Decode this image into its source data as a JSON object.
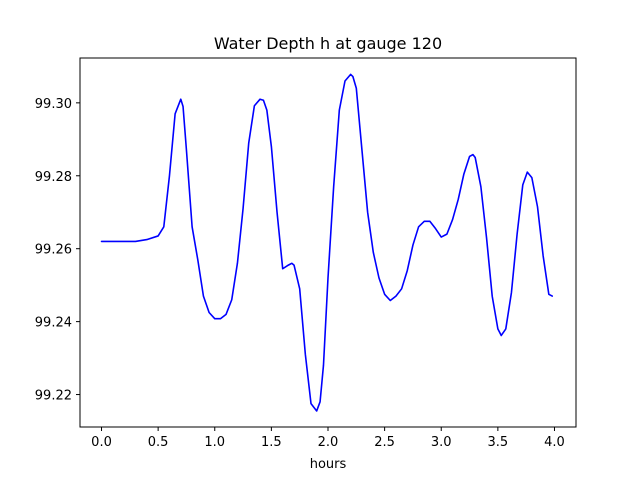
{
  "chart_data": {
    "type": "line",
    "title": "Water Depth h at gauge 120",
    "xlabel": "hours",
    "ylabel": "",
    "xlim": [
      -0.19,
      4.19
    ],
    "ylim": [
      99.2111,
      99.3123
    ],
    "xticks": [
      0.0,
      0.5,
      1.0,
      1.5,
      2.0,
      2.5,
      3.0,
      3.5,
      4.0
    ],
    "xtick_labels": [
      "0.0",
      "0.5",
      "1.0",
      "1.5",
      "2.0",
      "2.5",
      "3.0",
      "3.5",
      "4.0"
    ],
    "yticks": [
      99.22,
      99.24,
      99.26,
      99.28,
      99.3
    ],
    "ytick_labels": [
      "99.22",
      "99.24",
      "99.26",
      "99.28",
      "99.30"
    ],
    "grid": false,
    "color": "#0000ff",
    "series": [
      {
        "x": [
          0.0,
          0.1,
          0.2,
          0.3,
          0.4,
          0.5,
          0.55,
          0.6,
          0.65,
          0.7,
          0.72,
          0.75,
          0.8,
          0.85,
          0.9,
          0.95,
          1.0,
          1.05,
          1.1,
          1.15,
          1.2,
          1.25,
          1.3,
          1.35,
          1.4,
          1.43,
          1.46,
          1.5,
          1.55,
          1.6,
          1.65,
          1.68,
          1.7,
          1.75,
          1.8,
          1.85,
          1.9,
          1.93,
          1.96,
          2.0,
          2.05,
          2.1,
          2.15,
          2.2,
          2.22,
          2.25,
          2.3,
          2.35,
          2.4,
          2.45,
          2.5,
          2.55,
          2.6,
          2.65,
          2.7,
          2.75,
          2.8,
          2.85,
          2.9,
          2.95,
          3.0,
          3.05,
          3.1,
          3.15,
          3.2,
          3.25,
          3.28,
          3.3,
          3.35,
          3.4,
          3.45,
          3.5,
          3.53,
          3.57,
          3.62,
          3.67,
          3.72,
          3.76,
          3.8,
          3.85,
          3.9,
          3.95,
          3.98
        ],
        "y": [
          99.262,
          99.262,
          99.262,
          99.262,
          99.2625,
          99.2635,
          99.266,
          99.28,
          99.297,
          99.301,
          99.299,
          99.287,
          99.266,
          99.257,
          99.247,
          99.2425,
          99.2408,
          99.2408,
          99.242,
          99.246,
          99.256,
          99.271,
          99.289,
          99.2992,
          99.301,
          99.3007,
          99.298,
          99.288,
          99.27,
          99.2545,
          99.2555,
          99.256,
          99.2555,
          99.249,
          99.231,
          99.2175,
          99.2155,
          99.218,
          99.228,
          99.252,
          99.277,
          99.298,
          99.306,
          99.3078,
          99.3072,
          99.304,
          99.287,
          99.27,
          99.259,
          99.252,
          99.2475,
          99.2458,
          99.247,
          99.249,
          99.254,
          99.261,
          99.266,
          99.2675,
          99.2675,
          99.2655,
          99.2632,
          99.264,
          99.268,
          99.2735,
          99.2805,
          99.2853,
          99.2858,
          99.285,
          99.277,
          99.263,
          99.247,
          99.238,
          99.2362,
          99.238,
          99.248,
          99.264,
          99.2775,
          99.281,
          99.2795,
          99.2715,
          99.258,
          99.2475,
          99.247
        ]
      }
    ]
  }
}
